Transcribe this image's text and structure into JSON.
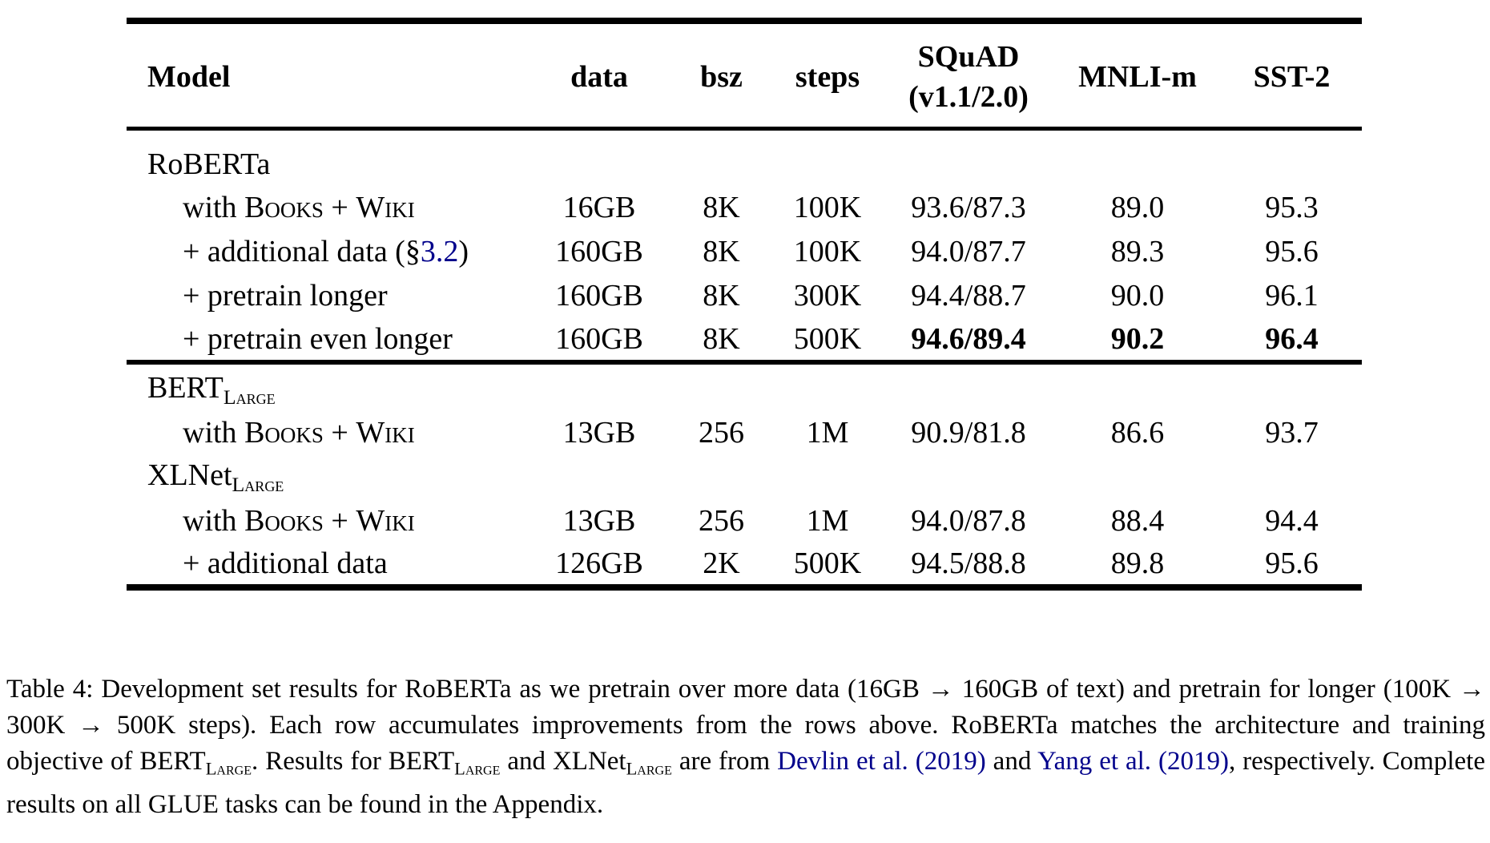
{
  "colors": {
    "background": "#ffffff",
    "text": "#000000",
    "link_blue": "#00008B"
  },
  "table": {
    "columns": [
      {
        "label": "Model",
        "align": "left"
      },
      {
        "label": "data"
      },
      {
        "label": "bsz"
      },
      {
        "label": "steps"
      },
      {
        "label": "SQuAD",
        "sublabel": "(v1.1/2.0)"
      },
      {
        "label": "MNLI-m"
      },
      {
        "label": "SST-2"
      }
    ],
    "groups": [
      {
        "name": [
          {
            "t": "RoBERTa"
          }
        ],
        "rows": [
          {
            "model": [
              {
                "t": "with "
              },
              {
                "t": "Books",
                "s": "smallcaps"
              },
              {
                "t": " + "
              },
              {
                "t": "Wiki",
                "s": "smallcaps"
              }
            ],
            "data": "16GB",
            "bsz": "8K",
            "steps": "100K",
            "squad": "93.6/87.3",
            "mnli": "89.0",
            "sst2": "95.3"
          },
          {
            "model": [
              {
                "t": "+ additional data (§"
              },
              {
                "t": "3.2",
                "s": "link",
                "n": "section-3-2-link"
              },
              {
                "t": ")"
              }
            ],
            "data": "160GB",
            "bsz": "8K",
            "steps": "100K",
            "squad": "94.0/87.7",
            "mnli": "89.3",
            "sst2": "95.6"
          },
          {
            "model": [
              {
                "t": "+ pretrain longer"
              }
            ],
            "data": "160GB",
            "bsz": "8K",
            "steps": "300K",
            "squad": "94.4/88.7",
            "mnli": "90.0",
            "sst2": "96.1"
          },
          {
            "model": [
              {
                "t": "+ pretrain even longer"
              }
            ],
            "data": "160GB",
            "bsz": "8K",
            "steps": "500K",
            "squad": "94.6/89.4",
            "mnli": "90.2",
            "sst2": "96.4",
            "bold_cols": [
              "squad",
              "mnli",
              "sst2"
            ]
          }
        ]
      },
      {
        "name": [
          {
            "t": "BERT"
          },
          {
            "t": "Large",
            "s": "subsc"
          }
        ],
        "rows": [
          {
            "model": [
              {
                "t": "with "
              },
              {
                "t": "Books",
                "s": "smallcaps"
              },
              {
                "t": " + "
              },
              {
                "t": "Wiki",
                "s": "smallcaps"
              }
            ],
            "data": "13GB",
            "bsz": "256",
            "steps": "1M",
            "squad": "90.9/81.8",
            "mnli": "86.6",
            "sst2": "93.7"
          }
        ]
      },
      {
        "name": [
          {
            "t": "XLNet"
          },
          {
            "t": "Large",
            "s": "subsc"
          }
        ],
        "rows": [
          {
            "model": [
              {
                "t": "with "
              },
              {
                "t": "Books",
                "s": "smallcaps"
              },
              {
                "t": " + "
              },
              {
                "t": "Wiki",
                "s": "smallcaps"
              }
            ],
            "data": "13GB",
            "bsz": "256",
            "steps": "1M",
            "squad": "94.0/87.8",
            "mnli": "88.4",
            "sst2": "94.4"
          },
          {
            "model": [
              {
                "t": "+ additional data"
              }
            ],
            "data": "126GB",
            "bsz": "2K",
            "steps": "500K",
            "squad": "94.5/88.8",
            "mnli": "89.8",
            "sst2": "95.6"
          }
        ]
      }
    ]
  },
  "caption": {
    "segments": [
      {
        "t": "Table 4: Development set results for RoBERTa as we pretrain over more data (16GB → 160GB of text) and pretrain for longer (100K → 300K → 500K steps). Each row accumulates improvements from the rows above. RoBERTa matches the architecture and training objective of BERT"
      },
      {
        "t": "Large",
        "s": "subsc"
      },
      {
        "t": ". Results for BERT"
      },
      {
        "t": "Large",
        "s": "subsc"
      },
      {
        "t": " and XLNet"
      },
      {
        "t": "Large",
        "s": "subsc"
      },
      {
        "t": " are from "
      },
      {
        "t": "Devlin et al. (2019)",
        "s": "link",
        "n": "devlin-2019-citation-link"
      },
      {
        "t": " and "
      },
      {
        "t": "Yang et al. (2019)",
        "s": "link",
        "n": "yang-2019-citation-link"
      },
      {
        "t": ", respectively. Complete results on all GLUE tasks can be found in the Appendix."
      }
    ]
  }
}
